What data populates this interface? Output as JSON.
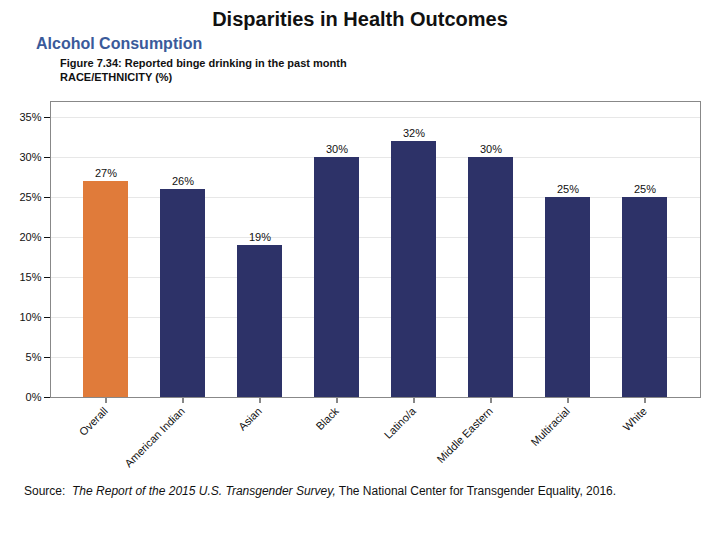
{
  "chart_data": {
    "type": "bar",
    "title": "Disparities in Health Outcomes",
    "subtitle": "Alcohol Consumption",
    "annotations": [
      "Figure 7.34: Reported binge drinking in the past month",
      "RACE/ETHNICITY (%)"
    ],
    "categories": [
      "Overall",
      "American Indian",
      "Asian",
      "Black",
      "Latino/a",
      "Middle Eastern",
      "Multiracial",
      "White"
    ],
    "values": [
      27,
      26,
      19,
      30,
      32,
      30,
      25,
      25
    ],
    "value_labels": [
      "27%",
      "26%",
      "19%",
      "30%",
      "32%",
      "30%",
      "25%",
      "25%"
    ],
    "colors": [
      "#E07B3A",
      "#2D3268",
      "#2D3268",
      "#2D3268",
      "#2D3268",
      "#2D3268",
      "#2D3268",
      "#2D3268"
    ],
    "ylim": [
      0,
      37
    ],
    "yticks": [
      {
        "value": 0,
        "label": "0%"
      },
      {
        "value": 5,
        "label": "5%"
      },
      {
        "value": 10,
        "label": "10%"
      },
      {
        "value": 15,
        "label": "15%"
      },
      {
        "value": 20,
        "label": "20%"
      },
      {
        "value": 25,
        "label": "25%"
      },
      {
        "value": 30,
        "label": "30%"
      },
      {
        "value": 35,
        "label": "35%"
      }
    ],
    "grid": true,
    "data_labels": true,
    "source_prefix": "Source:  ",
    "source_italic": "The Report of the 2015 U.S. Transgender Survey,",
    "source_normal": " The National Center for Transgender Equality, 2016."
  }
}
